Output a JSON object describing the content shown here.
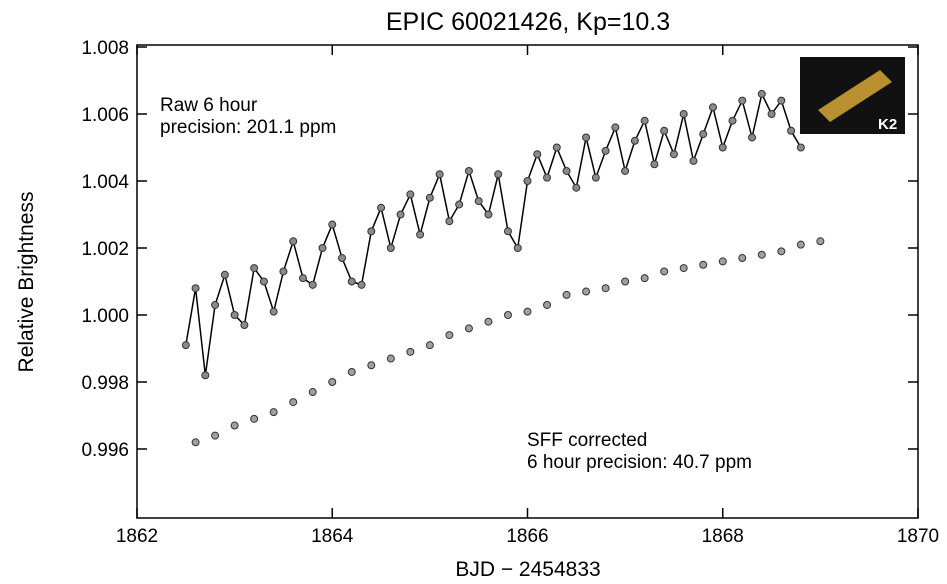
{
  "chart_data": {
    "type": "scatter",
    "title": "EPIC 60021426, Kp=10.3",
    "x_label": "BJD − 2454833",
    "y_label": "Relative Brightness",
    "annotations": [
      "Raw 6 hour",
      "precision: 201.1 ppm",
      "SFF corrected",
      "6 hour precision: 40.7 ppm"
    ],
    "logo_label": "K2",
    "xlim": [
      1862,
      1870
    ],
    "xticks": [
      1862,
      1864,
      1866,
      1868,
      1870
    ],
    "ylim": [
      0.99394,
      1.00806
    ],
    "yticks": [
      0.996,
      0.998,
      {
        "value": 1,
        "label": "1.000"
      },
      1.002,
      1.004,
      1.006,
      1.008
    ],
    "series": [
      {
        "color": "#8a8a8a",
        "line": true,
        "x": [
          1862.5,
          1862.6,
          1862.7,
          1862.8,
          1862.9,
          1863.0,
          1863.1,
          1863.2,
          1863.3,
          1863.4,
          1863.5,
          1863.6,
          1863.7,
          1863.8,
          1863.9,
          1864.0,
          1864.1,
          1864.2,
          1864.3,
          1864.4,
          1864.5,
          1864.6,
          1864.7,
          1864.8,
          1864.9,
          1865.0,
          1865.1,
          1865.2,
          1865.3,
          1865.4,
          1865.5,
          1865.6,
          1865.7,
          1865.8,
          1865.9,
          1866.0,
          1866.1,
          1866.2,
          1866.3,
          1866.4,
          1866.5,
          1866.6,
          1866.7,
          1866.8,
          1866.9,
          1867.0,
          1867.1,
          1867.2,
          1867.3,
          1867.4,
          1867.5,
          1867.6,
          1867.7,
          1867.8,
          1867.9,
          1868.0,
          1868.1,
          1868.2,
          1868.3,
          1868.4,
          1868.5,
          1868.6,
          1868.7,
          1868.8
        ],
        "values": [
          0.9991,
          1.0008,
          0.9982,
          1.0003,
          1.0012,
          1.0,
          0.9997,
          1.0014,
          1.001,
          1.0001,
          1.0013,
          1.0022,
          1.0011,
          1.0009,
          1.002,
          1.0027,
          1.0017,
          1.001,
          1.0009,
          1.0025,
          1.0032,
          1.002,
          1.003,
          1.0036,
          1.0024,
          1.0035,
          1.0042,
          1.0028,
          1.0033,
          1.0043,
          1.0034,
          1.003,
          1.0042,
          1.0025,
          1.002,
          1.004,
          1.0048,
          1.0041,
          1.005,
          1.0043,
          1.0038,
          1.0053,
          1.0041,
          1.0049,
          1.0056,
          1.0043,
          1.0052,
          1.0058,
          1.0045,
          1.0055,
          1.0048,
          1.006,
          1.0046,
          1.0054,
          1.0062,
          1.005,
          1.0058,
          1.0064,
          1.0053,
          1.0066,
          1.006,
          1.0064,
          1.0055,
          1.005
        ]
      },
      {
        "color": "#a0a0a0",
        "line": false,
        "x": [
          1862.6,
          1862.8,
          1863.0,
          1863.2,
          1863.4,
          1863.6,
          1863.8,
          1864.0,
          1864.2,
          1864.4,
          1864.6,
          1864.8,
          1865.0,
          1865.2,
          1865.4,
          1865.6,
          1865.8,
          1866.0,
          1866.2,
          1866.4,
          1866.6,
          1866.8,
          1867.0,
          1867.2,
          1867.4,
          1867.6,
          1867.8,
          1868.0,
          1868.2,
          1868.4,
          1868.6,
          1868.8,
          1869.0
        ],
        "values": [
          0.9962,
          0.9964,
          0.9967,
          0.9969,
          0.9971,
          0.9974,
          0.9977,
          0.998,
          0.9983,
          0.9985,
          0.9987,
          0.9989,
          0.9991,
          0.9994,
          0.9996,
          0.9998,
          1.0,
          1.0001,
          1.0003,
          1.0006,
          1.0007,
          1.0008,
          1.001,
          1.0011,
          1.0013,
          1.0014,
          1.0015,
          1.0016,
          1.0017,
          1.0018,
          1.0019,
          1.0021,
          1.0022
        ]
      }
    ]
  }
}
